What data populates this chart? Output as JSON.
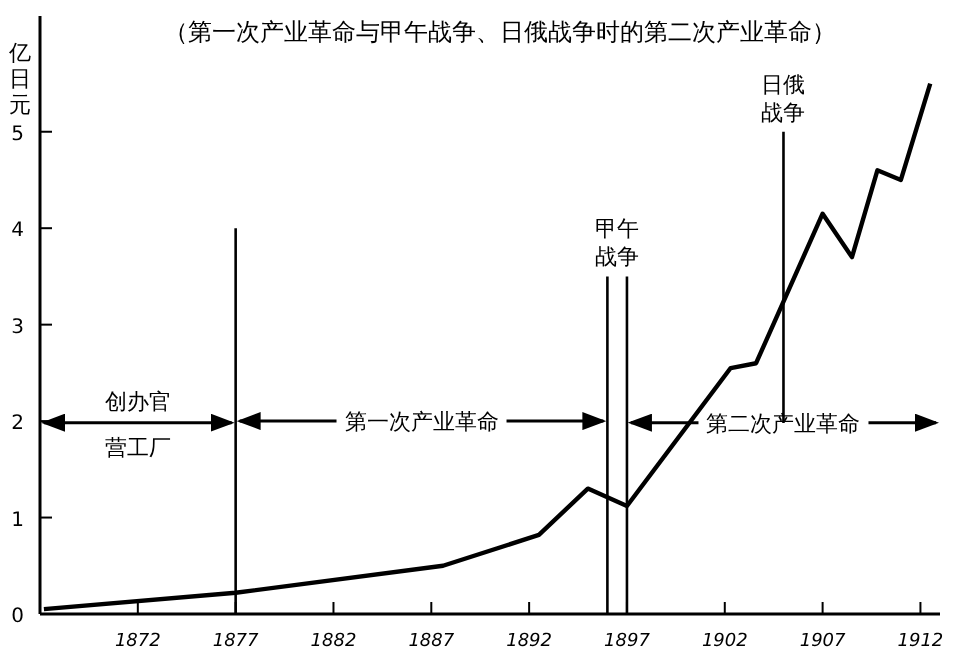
{
  "chart_data": {
    "type": "line",
    "title": "（第一次产业革命与甲午战争、日俄战争时的第二次产业革命）",
    "ylabel": "亿日元",
    "x": [
      1867.2,
      1877,
      1887.6,
      1892.5,
      1895,
      1897,
      1902.3,
      1903.6,
      1907,
      1908.5,
      1909.8,
      1911,
      1912.5
    ],
    "series": [
      {
        "color": "#000000",
        "values": [
          0.05,
          0.22,
          0.5,
          0.82,
          1.3,
          1.12,
          2.55,
          2.6,
          4.15,
          3.7,
          4.6,
          4.5,
          5.5
        ]
      }
    ],
    "xlim": [
      1867,
      1913
    ],
    "ylim": [
      0,
      6.2
    ],
    "xticks": [
      1872,
      1877,
      1882,
      1887,
      1892,
      1897,
      1902,
      1907,
      1912
    ],
    "yticks": [
      0,
      1,
      2,
      3,
      4,
      5
    ],
    "ref_lines": [
      {
        "axis": "x",
        "value": 1877
      },
      {
        "axis": "x",
        "value": 1896,
        "label": "甲午战争"
      },
      {
        "axis": "x",
        "value": 1897
      },
      {
        "axis": "x",
        "value": 1905,
        "label": "日俄战争"
      }
    ],
    "annotations": [
      "创办官营工厂",
      {
        "text": "第一次产业革命",
        "x": 1896,
        "y": 2
      },
      "第二次产业革命"
    ],
    "grid": false,
    "marker": "none",
    "line_style": "solid"
  }
}
